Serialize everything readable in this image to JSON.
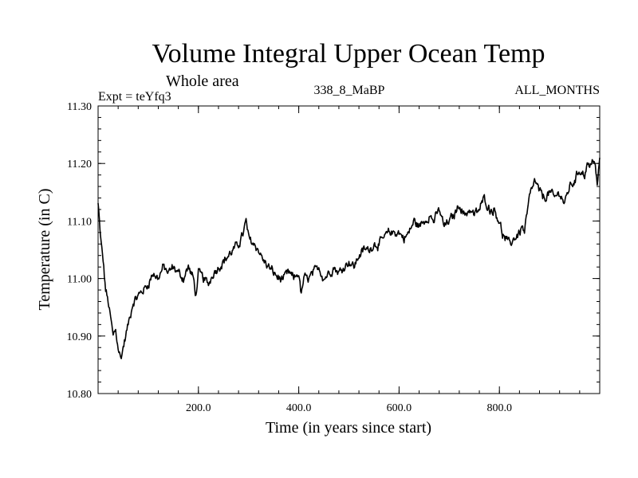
{
  "chart_data": {
    "type": "line",
    "title": "Volume Integral Upper Ocean Temp",
    "subtitle": "Whole area",
    "expt_label": "Expt = teYfq3",
    "center_label": "338_8_MaBP",
    "right_label": "ALL_MONTHS",
    "xlabel": "Time (in years since start)",
    "ylabel": "Temperature (in C)",
    "xlim": [
      0,
      1000
    ],
    "ylim": [
      10.8,
      11.3
    ],
    "xticks": [
      200,
      400,
      600,
      800
    ],
    "xtick_labels": [
      "200.0",
      "400.0",
      "600.0",
      "800.0"
    ],
    "yticks": [
      10.8,
      10.9,
      11.0,
      11.1,
      11.2,
      11.3
    ],
    "ytick_labels": [
      "10.80",
      "10.90",
      "11.00",
      "11.10",
      "11.20",
      "11.30"
    ],
    "series": [
      {
        "name": "teYfq3",
        "x": [
          0,
          5,
          10,
          15,
          20,
          25,
          30,
          35,
          40,
          45,
          50,
          55,
          60,
          65,
          70,
          80,
          90,
          100,
          110,
          120,
          130,
          140,
          150,
          160,
          170,
          180,
          190,
          195,
          200,
          210,
          220,
          230,
          240,
          250,
          260,
          270,
          280,
          290,
          295,
          300,
          310,
          320,
          330,
          340,
          350,
          360,
          370,
          380,
          390,
          400,
          405,
          410,
          420,
          430,
          440,
          450,
          460,
          470,
          480,
          490,
          500,
          510,
          520,
          530,
          540,
          550,
          560,
          570,
          580,
          590,
          600,
          610,
          620,
          630,
          640,
          650,
          660,
          670,
          680,
          690,
          700,
          710,
          720,
          730,
          740,
          750,
          760,
          770,
          780,
          790,
          800,
          805,
          810,
          820,
          830,
          840,
          845,
          850,
          860,
          870,
          880,
          890,
          900,
          910,
          920,
          930,
          940,
          950,
          960,
          970,
          975,
          980,
          985,
          990,
          995,
          1000
        ],
        "values": [
          11.13,
          11.07,
          11.03,
          10.98,
          10.96,
          10.93,
          10.9,
          10.91,
          10.88,
          10.86,
          10.88,
          10.9,
          10.92,
          10.94,
          10.96,
          10.97,
          10.98,
          10.99,
          11.01,
          11.0,
          11.02,
          11.01,
          11.02,
          11.01,
          11.0,
          11.02,
          11.0,
          10.97,
          11.01,
          11.0,
          10.99,
          11.01,
          11.02,
          11.03,
          11.04,
          11.05,
          11.06,
          11.08,
          11.1,
          11.07,
          11.06,
          11.05,
          11.03,
          11.02,
          11.01,
          11.0,
          11.0,
          11.01,
          11.0,
          11.01,
          10.97,
          11.0,
          11.0,
          11.01,
          11.02,
          11.0,
          11.01,
          11.02,
          11.01,
          11.02,
          11.03,
          11.02,
          11.04,
          11.05,
          11.05,
          11.06,
          11.06,
          11.07,
          11.08,
          11.08,
          11.08,
          11.07,
          11.08,
          11.1,
          11.09,
          11.1,
          11.11,
          11.1,
          11.12,
          11.09,
          11.1,
          11.11,
          11.13,
          11.11,
          11.12,
          11.11,
          11.12,
          11.14,
          11.12,
          11.12,
          11.1,
          11.08,
          11.07,
          11.06,
          11.07,
          11.08,
          11.09,
          11.08,
          11.14,
          11.17,
          11.15,
          11.14,
          11.15,
          11.14,
          11.15,
          11.13,
          11.16,
          11.17,
          11.19,
          11.18,
          11.2,
          11.19,
          11.21,
          11.2,
          11.16,
          11.21
        ]
      }
    ]
  }
}
